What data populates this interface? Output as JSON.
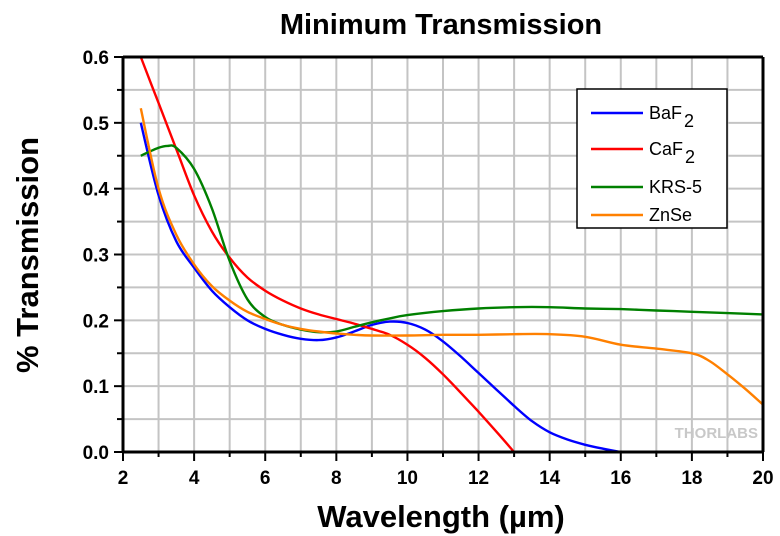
{
  "chart_data": {
    "type": "line",
    "title": "Minimum Transmission",
    "xlabel": "Wavelength (µm)",
    "ylabel": "% Transmission",
    "xlim": [
      2,
      20
    ],
    "ylim": [
      0,
      0.6
    ],
    "xticks": [
      2,
      4,
      6,
      8,
      10,
      12,
      14,
      16,
      18,
      20
    ],
    "xtick_labels": [
      "2",
      "4",
      "6",
      "8",
      "10",
      "12",
      "14",
      "16",
      "18",
      "20"
    ],
    "yticks": [
      0.0,
      0.1,
      0.2,
      0.3,
      0.4,
      0.5,
      0.6
    ],
    "ytick_labels": [
      "0.0",
      "0.1",
      "0.2",
      "0.3",
      "0.4",
      "0.5",
      "0.6"
    ],
    "x_minor_step": 1,
    "y_minor_step": 0.05,
    "grid": true,
    "legend_position": "top-right",
    "watermark": "THORLABS",
    "series": [
      {
        "name": "BaF2",
        "label_main": "BaF",
        "label_sub": "2",
        "color": "#0000ff",
        "x": [
          2.5,
          3.0,
          3.5,
          4.0,
          4.5,
          5.0,
          5.5,
          6.0,
          6.5,
          7.0,
          7.5,
          8.0,
          8.5,
          9.0,
          9.5,
          10.0,
          10.5,
          11.0,
          11.5,
          12.0,
          12.5,
          13.0,
          13.5,
          14.0,
          14.5,
          15.0,
          15.5,
          16.0
        ],
        "y": [
          0.5,
          0.39,
          0.32,
          0.28,
          0.245,
          0.22,
          0.2,
          0.187,
          0.178,
          0.172,
          0.17,
          0.174,
          0.183,
          0.193,
          0.198,
          0.196,
          0.186,
          0.168,
          0.145,
          0.12,
          0.095,
          0.07,
          0.047,
          0.03,
          0.019,
          0.011,
          0.005,
          0.0
        ]
      },
      {
        "name": "CaF2",
        "label_main": "CaF",
        "label_sub": "2",
        "color": "#ff0000",
        "x": [
          2.5,
          3.0,
          3.5,
          4.0,
          4.5,
          5.0,
          5.5,
          6.0,
          6.5,
          7.0,
          7.5,
          8.0,
          8.5,
          9.0,
          9.5,
          10.0,
          10.5,
          11.0,
          11.5,
          12.0,
          12.5,
          13.0
        ],
        "y": [
          0.6,
          0.53,
          0.46,
          0.39,
          0.335,
          0.295,
          0.265,
          0.245,
          0.23,
          0.218,
          0.209,
          0.202,
          0.195,
          0.187,
          0.178,
          0.163,
          0.143,
          0.118,
          0.09,
          0.061,
          0.031,
          0.0
        ]
      },
      {
        "name": "KRS-5",
        "label_main": "KRS-5",
        "label_sub": "",
        "color": "#008000",
        "x": [
          2.5,
          3.0,
          3.25,
          3.5,
          4.0,
          4.5,
          5.0,
          5.5,
          6.0,
          6.5,
          7.0,
          7.5,
          8.0,
          8.5,
          9.0,
          9.5,
          10.0,
          11.0,
          12.0,
          13.0,
          14.0,
          15.0,
          16.0,
          17.0,
          18.0,
          19.0,
          20.0
        ],
        "y": [
          0.45,
          0.462,
          0.465,
          0.462,
          0.43,
          0.37,
          0.29,
          0.232,
          0.205,
          0.193,
          0.186,
          0.182,
          0.183,
          0.19,
          0.197,
          0.203,
          0.208,
          0.214,
          0.218,
          0.22,
          0.22,
          0.218,
          0.217,
          0.215,
          0.213,
          0.211,
          0.209
        ]
      },
      {
        "name": "ZnSe",
        "label_main": "ZnSe",
        "label_sub": "",
        "color": "#ff8000",
        "x": [
          2.5,
          3.0,
          3.5,
          4.0,
          4.5,
          5.0,
          5.5,
          6.0,
          6.5,
          7.0,
          7.5,
          8.0,
          8.5,
          9.0,
          10.0,
          11.0,
          12.0,
          13.0,
          14.0,
          15.0,
          16.0,
          17.0,
          18.0,
          18.5,
          19.0,
          19.5,
          20.0
        ],
        "y": [
          0.522,
          0.4,
          0.33,
          0.285,
          0.252,
          0.23,
          0.213,
          0.202,
          0.193,
          0.187,
          0.183,
          0.18,
          0.178,
          0.177,
          0.177,
          0.178,
          0.178,
          0.179,
          0.179,
          0.175,
          0.163,
          0.157,
          0.15,
          0.138,
          0.118,
          0.096,
          0.072
        ]
      }
    ]
  }
}
